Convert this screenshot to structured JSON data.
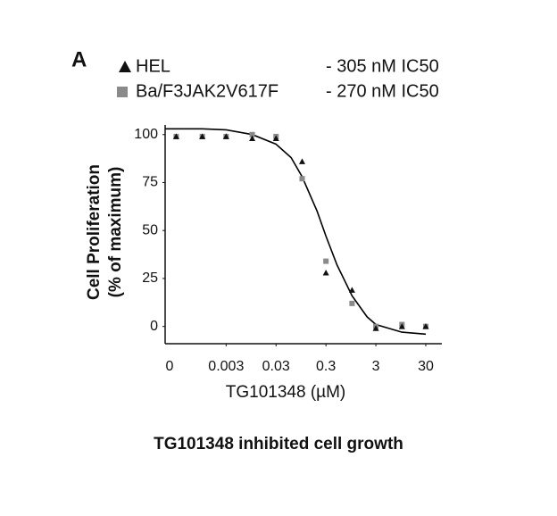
{
  "chart_data": {
    "type": "scatter",
    "panel_label": "A",
    "xlabel": "TG101348 (µM)",
    "ylabel": [
      "Cell Proliferation",
      "(% of maximum)"
    ],
    "caption": "TG101348 inhibited cell growth",
    "x_zero_label": "0",
    "xscale": "log",
    "xlim": [
      0.00018,
      63
    ],
    "xticks": [
      0.003,
      0.03,
      0.3,
      3,
      30
    ],
    "ylim": [
      -9,
      105
    ],
    "yticks": [
      0,
      25,
      50,
      75,
      100
    ],
    "x": [
      0.0003,
      0.001,
      0.003,
      0.01,
      0.03,
      0.1,
      0.3,
      1,
      3,
      10,
      30
    ],
    "series": [
      {
        "name": "HEL",
        "note": "- 305 nM IC50",
        "color": "#111111",
        "marker": "triangle",
        "values": [
          99,
          99,
          99,
          98,
          98,
          86,
          28,
          19,
          -1,
          0,
          0
        ]
      },
      {
        "name": "Ba/F3JAK2V617F",
        "note": "- 270 nM IC50",
        "color": "#8a8a8a",
        "marker": "square",
        "values": [
          99,
          99,
          99,
          100,
          99,
          77,
          34,
          12,
          0,
          1,
          0
        ]
      }
    ],
    "fit_curve": {
      "color": "#000000",
      "x": [
        0.00018,
        0.001,
        0.003,
        0.01,
        0.03,
        0.06,
        0.1,
        0.2,
        0.3,
        0.5,
        1,
        2,
        3,
        10,
        30
      ],
      "values": [
        103,
        103,
        102.5,
        100,
        95,
        88,
        78,
        60,
        47,
        32,
        16,
        5,
        1,
        -3,
        -4
      ]
    }
  }
}
